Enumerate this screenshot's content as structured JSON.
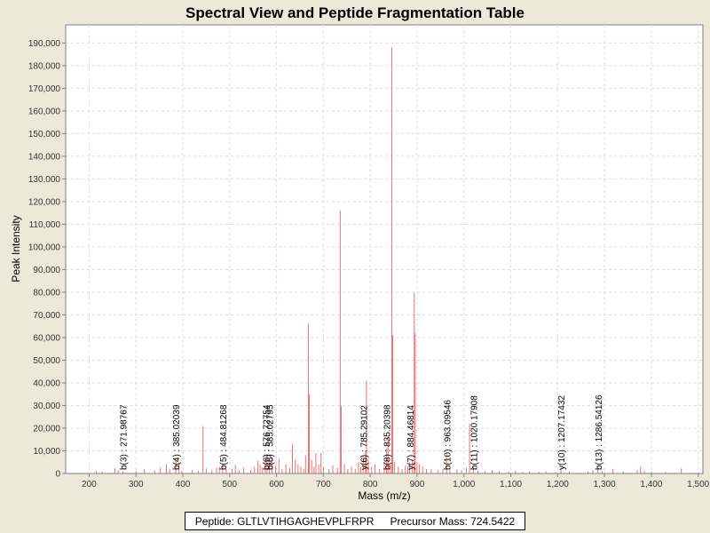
{
  "chart_data": {
    "type": "bar",
    "title": "Spectral View and Peptide Fragmentation Table",
    "xlabel": "Mass (m/z)",
    "ylabel": "Peak Intensity",
    "xlim": [
      150,
      1510
    ],
    "ylim": [
      0,
      198000
    ],
    "xticks": [
      200,
      300,
      400,
      500,
      600,
      700,
      800,
      900,
      1000,
      1100,
      1200,
      1300,
      1400,
      1500
    ],
    "xtick_labels": [
      "200",
      "300",
      "400",
      "500",
      "600",
      "700",
      "800",
      "900",
      "1,000",
      "1,100",
      "1,200",
      "1,300",
      "1,400",
      "1,500"
    ],
    "yticks": [
      0,
      10000,
      20000,
      30000,
      40000,
      50000,
      60000,
      70000,
      80000,
      90000,
      100000,
      110000,
      120000,
      130000,
      140000,
      150000,
      160000,
      170000,
      180000,
      190000
    ],
    "ytick_labels": [
      "0",
      "10,000",
      "20,000",
      "30,000",
      "40,000",
      "50,000",
      "60,000",
      "70,000",
      "80,000",
      "90,000",
      "100,000",
      "110,000",
      "120,000",
      "130,000",
      "140,000",
      "150,000",
      "160,000",
      "170,000",
      "180,000",
      "190,000"
    ],
    "grid": true,
    "bar_color": "#f07070",
    "peaks": [
      [
        215,
        1200
      ],
      [
        228,
        800
      ],
      [
        255,
        2200
      ],
      [
        262,
        1500
      ],
      [
        272,
        1000
      ],
      [
        300,
        900
      ],
      [
        318,
        1800
      ],
      [
        340,
        1300
      ],
      [
        352,
        2500
      ],
      [
        365,
        4000
      ],
      [
        372,
        2000
      ],
      [
        385,
        7000
      ],
      [
        392,
        5000
      ],
      [
        398,
        1200
      ],
      [
        420,
        1500
      ],
      [
        433,
        1200
      ],
      [
        443,
        21000
      ],
      [
        450,
        2200
      ],
      [
        462,
        1500
      ],
      [
        472,
        2500
      ],
      [
        478,
        3000
      ],
      [
        485,
        4000
      ],
      [
        493,
        1800
      ],
      [
        505,
        2000
      ],
      [
        512,
        3800
      ],
      [
        520,
        1500
      ],
      [
        530,
        2500
      ],
      [
        545,
        1500
      ],
      [
        553,
        3000
      ],
      [
        560,
        5500
      ],
      [
        565,
        4000
      ],
      [
        570,
        2500
      ],
      [
        576,
        8000
      ],
      [
        580,
        3500
      ],
      [
        585,
        5000
      ],
      [
        590,
        7000
      ],
      [
        598,
        3500
      ],
      [
        605,
        6500
      ],
      [
        612,
        2000
      ],
      [
        620,
        4000
      ],
      [
        628,
        2500
      ],
      [
        634,
        13000
      ],
      [
        640,
        6000
      ],
      [
        646,
        4000
      ],
      [
        652,
        3000
      ],
      [
        658,
        2000
      ],
      [
        662,
        8000
      ],
      [
        668,
        66000
      ],
      [
        670,
        35000
      ],
      [
        675,
        6000
      ],
      [
        680,
        3000
      ],
      [
        684,
        9000
      ],
      [
        690,
        4000
      ],
      [
        695,
        9000
      ],
      [
        700,
        3000
      ],
      [
        712,
        2000
      ],
      [
        720,
        3500
      ],
      [
        730,
        2500
      ],
      [
        736,
        116000
      ],
      [
        738,
        30000
      ],
      [
        745,
        4000
      ],
      [
        752,
        2000
      ],
      [
        760,
        3000
      ],
      [
        768,
        2000
      ],
      [
        775,
        5000
      ],
      [
        780,
        3000
      ],
      [
        785,
        8000
      ],
      [
        790,
        10000
      ],
      [
        792,
        41000
      ],
      [
        796,
        6000
      ],
      [
        803,
        3000
      ],
      [
        810,
        4000
      ],
      [
        820,
        2000
      ],
      [
        830,
        5000
      ],
      [
        835,
        11000
      ],
      [
        838,
        17000
      ],
      [
        843,
        4000
      ],
      [
        846,
        188000
      ],
      [
        848,
        61000
      ],
      [
        852,
        5000
      ],
      [
        860,
        3000
      ],
      [
        868,
        2000
      ],
      [
        875,
        3500
      ],
      [
        880,
        3000
      ],
      [
        884,
        5000
      ],
      [
        890,
        6000
      ],
      [
        894,
        80000
      ],
      [
        896,
        62000
      ],
      [
        900,
        5000
      ],
      [
        905,
        4000
      ],
      [
        912,
        3000
      ],
      [
        920,
        2000
      ],
      [
        930,
        1800
      ],
      [
        945,
        1500
      ],
      [
        955,
        2000
      ],
      [
        963,
        9000
      ],
      [
        970,
        1500
      ],
      [
        985,
        1800
      ],
      [
        995,
        1500
      ],
      [
        1005,
        2500
      ],
      [
        1012,
        22000
      ],
      [
        1020,
        3000
      ],
      [
        1030,
        1200
      ],
      [
        1045,
        1000
      ],
      [
        1060,
        1500
      ],
      [
        1075,
        1000
      ],
      [
        1095,
        800
      ],
      [
        1110,
        1200
      ],
      [
        1125,
        700
      ],
      [
        1140,
        900
      ],
      [
        1160,
        800
      ],
      [
        1175,
        1000
      ],
      [
        1195,
        600
      ],
      [
        1207,
        1800
      ],
      [
        1225,
        800
      ],
      [
        1265,
        1000
      ],
      [
        1275,
        1500
      ],
      [
        1286,
        3500
      ],
      [
        1295,
        900
      ],
      [
        1318,
        2000
      ],
      [
        1340,
        800
      ],
      [
        1370,
        1500
      ],
      [
        1377,
        3000
      ],
      [
        1385,
        1200
      ],
      [
        1400,
        800
      ],
      [
        1430,
        600
      ],
      [
        1464,
        2200
      ]
    ],
    "annotations": [
      {
        "label": "b(3) : 271.98767",
        "x": 271.99
      },
      {
        "label": "b(4) : 385.02039",
        "x": 385.02
      },
      {
        "label": "b(5) : 484.81268",
        "x": 484.81
      },
      {
        "label": "b(6) : 576.72754",
        "x": 576.73
      },
      {
        "label": "b(6) : 585.02795",
        "x": 585.03
      },
      {
        "label": "y(6) : 785.29102",
        "x": 785.29
      },
      {
        "label": "b(8) : 835.20398",
        "x": 835.2
      },
      {
        "label": "y(7) : 884.46814",
        "x": 884.47
      },
      {
        "label": "b(10) : 963.09546",
        "x": 963.1
      },
      {
        "label": "b(11) : 1020.17908",
        "x": 1020.18
      },
      {
        "label": "y(10) : 1207.17432",
        "x": 1207.17
      },
      {
        "label": "b(13) : 1286.54126",
        "x": 1286.54
      }
    ]
  },
  "footer": {
    "peptide_label": "Peptide:",
    "peptide": "GLTLVTIHGAGHEVPLFRPR",
    "precursor_label": "Precursor Mass:",
    "precursor_mass": "724.5422"
  }
}
